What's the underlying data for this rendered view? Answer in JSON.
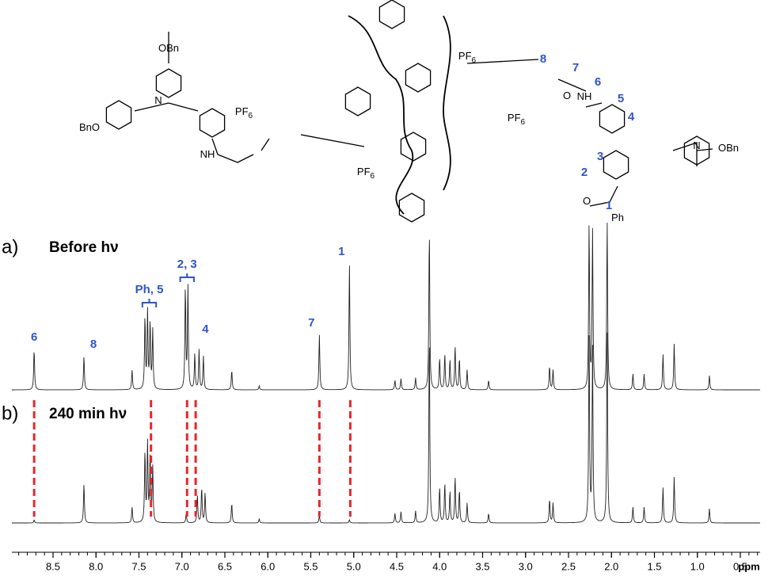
{
  "figure": {
    "structure": {
      "labels": [
        {
          "text": "OBn"
        },
        {
          "text": "BnO"
        },
        {
          "text": "N"
        },
        {
          "text": "NH"
        },
        {
          "text": "PF",
          "sub": "6"
        },
        {
          "text": "PF",
          "sub": "6"
        },
        {
          "text": "PF",
          "sub": "6"
        },
        {
          "text": "PF",
          "sub": "6"
        },
        {
          "text": "N"
        },
        {
          "text": "OBn"
        },
        {
          "text": "NH"
        },
        {
          "text": "O"
        },
        {
          "text": "Ph"
        },
        {
          "text": "O"
        }
      ],
      "numbers": [
        "8",
        "7",
        "6",
        "5",
        "4",
        "3",
        "2",
        "1"
      ]
    },
    "spectra": [
      {
        "label": "a)",
        "title": "Before hν",
        "peaks": [
          {
            "ppm": 8.72,
            "height": 52
          },
          {
            "ppm": 8.14,
            "height": 43
          },
          {
            "ppm": 7.58,
            "height": 25
          },
          {
            "ppm": 7.43,
            "height": 92
          },
          {
            "ppm": 7.4,
            "height": 98
          },
          {
            "ppm": 7.37,
            "height": 85
          },
          {
            "ppm": 7.34,
            "height": 75
          },
          {
            "ppm": 6.96,
            "height": 130
          },
          {
            "ppm": 6.93,
            "height": 130
          },
          {
            "ppm": 6.85,
            "height": 45
          },
          {
            "ppm": 6.8,
            "height": 50
          },
          {
            "ppm": 6.75,
            "height": 42
          },
          {
            "ppm": 6.42,
            "height": 25
          },
          {
            "ppm": 6.1,
            "height": 5
          },
          {
            "ppm": 5.4,
            "height": 70
          },
          {
            "ppm": 5.05,
            "height": 160
          },
          {
            "ppm": 4.52,
            "height": 12
          },
          {
            "ppm": 4.45,
            "height": 14
          },
          {
            "ppm": 4.28,
            "height": 15
          },
          {
            "ppm": 4.12,
            "height": 205
          },
          {
            "ppm": 4.0,
            "height": 40
          },
          {
            "ppm": 3.94,
            "height": 45
          },
          {
            "ppm": 3.88,
            "height": 38
          },
          {
            "ppm": 3.82,
            "height": 55
          },
          {
            "ppm": 3.77,
            "height": 40
          },
          {
            "ppm": 3.68,
            "height": 25
          },
          {
            "ppm": 3.43,
            "height": 12
          },
          {
            "ppm": 2.72,
            "height": 30
          },
          {
            "ppm": 2.68,
            "height": 25
          },
          {
            "ppm": 2.26,
            "height": 210
          },
          {
            "ppm": 2.22,
            "height": 200
          },
          {
            "ppm": 2.05,
            "height": 215
          },
          {
            "ppm": 1.75,
            "height": 20
          },
          {
            "ppm": 1.62,
            "height": 20
          },
          {
            "ppm": 1.4,
            "height": 45
          },
          {
            "ppm": 1.27,
            "height": 58
          },
          {
            "ppm": 0.86,
            "height": 18
          }
        ]
      },
      {
        "label": "b)",
        "title": "240 min hν",
        "peaks": [
          {
            "ppm": 8.72,
            "height": 4
          },
          {
            "ppm": 8.14,
            "height": 50
          },
          {
            "ppm": 7.58,
            "height": 20
          },
          {
            "ppm": 7.43,
            "height": 90
          },
          {
            "ppm": 7.4,
            "height": 100
          },
          {
            "ppm": 7.37,
            "height": 85
          },
          {
            "ppm": 7.34,
            "height": 70
          },
          {
            "ppm": 6.95,
            "height": 12
          },
          {
            "ppm": 6.82,
            "height": 35
          },
          {
            "ppm": 6.77,
            "height": 45
          },
          {
            "ppm": 6.73,
            "height": 38
          },
          {
            "ppm": 6.42,
            "height": 25
          },
          {
            "ppm": 6.1,
            "height": 5
          },
          {
            "ppm": 5.4,
            "height": 10
          },
          {
            "ppm": 5.05,
            "height": 4
          },
          {
            "ppm": 4.52,
            "height": 12
          },
          {
            "ppm": 4.45,
            "height": 14
          },
          {
            "ppm": 4.28,
            "height": 15
          },
          {
            "ppm": 4.12,
            "height": 240
          },
          {
            "ppm": 4.0,
            "height": 45
          },
          {
            "ppm": 3.94,
            "height": 50
          },
          {
            "ppm": 3.88,
            "height": 40
          },
          {
            "ppm": 3.82,
            "height": 58
          },
          {
            "ppm": 3.77,
            "height": 42
          },
          {
            "ppm": 3.68,
            "height": 25
          },
          {
            "ppm": 3.43,
            "height": 12
          },
          {
            "ppm": 2.72,
            "height": 30
          },
          {
            "ppm": 2.68,
            "height": 25
          },
          {
            "ppm": 2.26,
            "height": 240
          },
          {
            "ppm": 2.22,
            "height": 220
          },
          {
            "ppm": 2.05,
            "height": 245
          },
          {
            "ppm": 1.75,
            "height": 20
          },
          {
            "ppm": 1.62,
            "height": 20
          },
          {
            "ppm": 1.4,
            "height": 45
          },
          {
            "ppm": 1.27,
            "height": 58
          },
          {
            "ppm": 0.86,
            "height": 18
          }
        ]
      }
    ],
    "peak_labels": [
      {
        "text": "6",
        "ppm": 8.72
      },
      {
        "text": "8",
        "ppm": 8.14
      },
      {
        "text": "Ph, 5",
        "ppm": 7.38,
        "bracket": [
          7.46,
          7.3
        ]
      },
      {
        "text": "2, 3",
        "ppm": 6.94,
        "bracket": [
          7.02,
          6.86
        ]
      },
      {
        "text": "4",
        "ppm": 6.8
      },
      {
        "text": "7",
        "ppm": 5.4
      },
      {
        "text": "1",
        "ppm": 5.05
      }
    ],
    "markers": [
      8.72,
      7.36,
      6.94,
      6.84,
      5.4,
      5.04
    ],
    "axis": {
      "xlim": [
        8.98,
        0.27
      ],
      "xticks": [
        8.5,
        {
          "value": 8,
          "label": "8.0"
        },
        7.5,
        {
          "value": 7,
          "label": "7.0"
        },
        6.5,
        {
          "value": 6,
          "label": "6.0"
        },
        5.5,
        {
          "value": 5,
          "label": "5.0"
        },
        4.5,
        {
          "value": 4,
          "label": "4.0"
        },
        3.5,
        {
          "value": 3,
          "label": "3.0"
        },
        2.5,
        {
          "value": 2,
          "label": "2.0"
        },
        1.5,
        {
          "value": 1,
          "label": "1.0"
        },
        0.5
      ],
      "unit": "ppm"
    }
  }
}
